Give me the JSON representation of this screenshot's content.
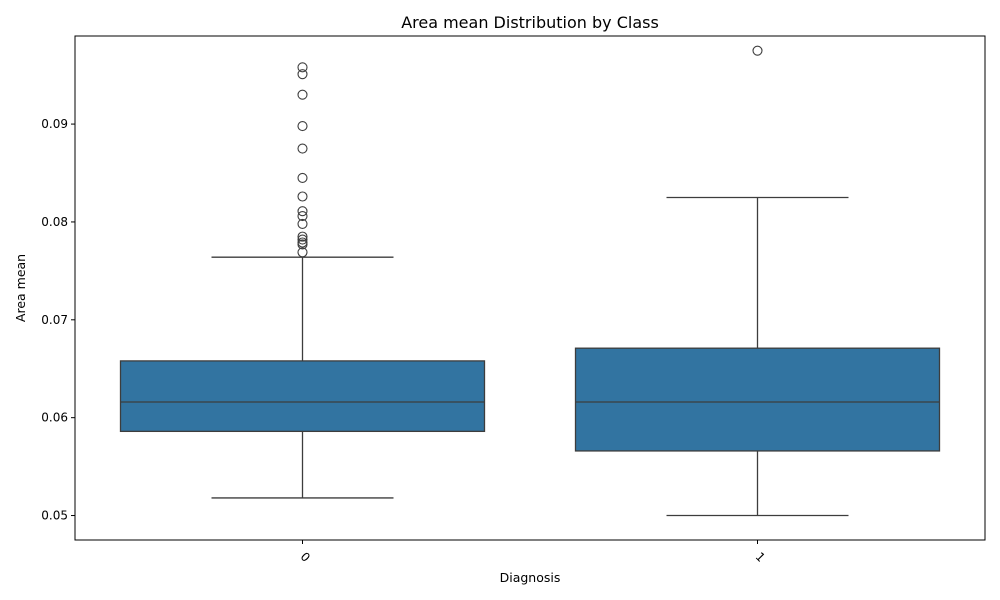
{
  "chart_data": {
    "type": "box",
    "title": "Area mean Distribution by Class",
    "xlabel": "Diagnosis",
    "ylabel": "Area mean",
    "categories": [
      "0",
      "1"
    ],
    "ylim": [
      0.0475,
      0.099
    ],
    "yticks": [
      0.05,
      0.06,
      0.07,
      0.08,
      0.09
    ],
    "ytick_labels": [
      "0.05",
      "0.06",
      "0.07",
      "0.08",
      "0.09"
    ],
    "box_color": "#3274a1",
    "line_color": "#3d3d3d",
    "boxes": [
      {
        "category": "0",
        "whisker_low": 0.0518,
        "q1": 0.0586,
        "median": 0.0616,
        "q3": 0.0658,
        "whisker_high": 0.0764,
        "outliers": [
          0.0958,
          0.0951,
          0.093,
          0.0898,
          0.0875,
          0.0845,
          0.0826,
          0.0811,
          0.0806,
          0.0798,
          0.0785,
          0.0782,
          0.0779,
          0.0777,
          0.0769
        ]
      },
      {
        "category": "1",
        "whisker_low": 0.05,
        "q1": 0.0566,
        "median": 0.0616,
        "q3": 0.0671,
        "whisker_high": 0.0825,
        "outliers": [
          0.0975
        ]
      }
    ]
  }
}
